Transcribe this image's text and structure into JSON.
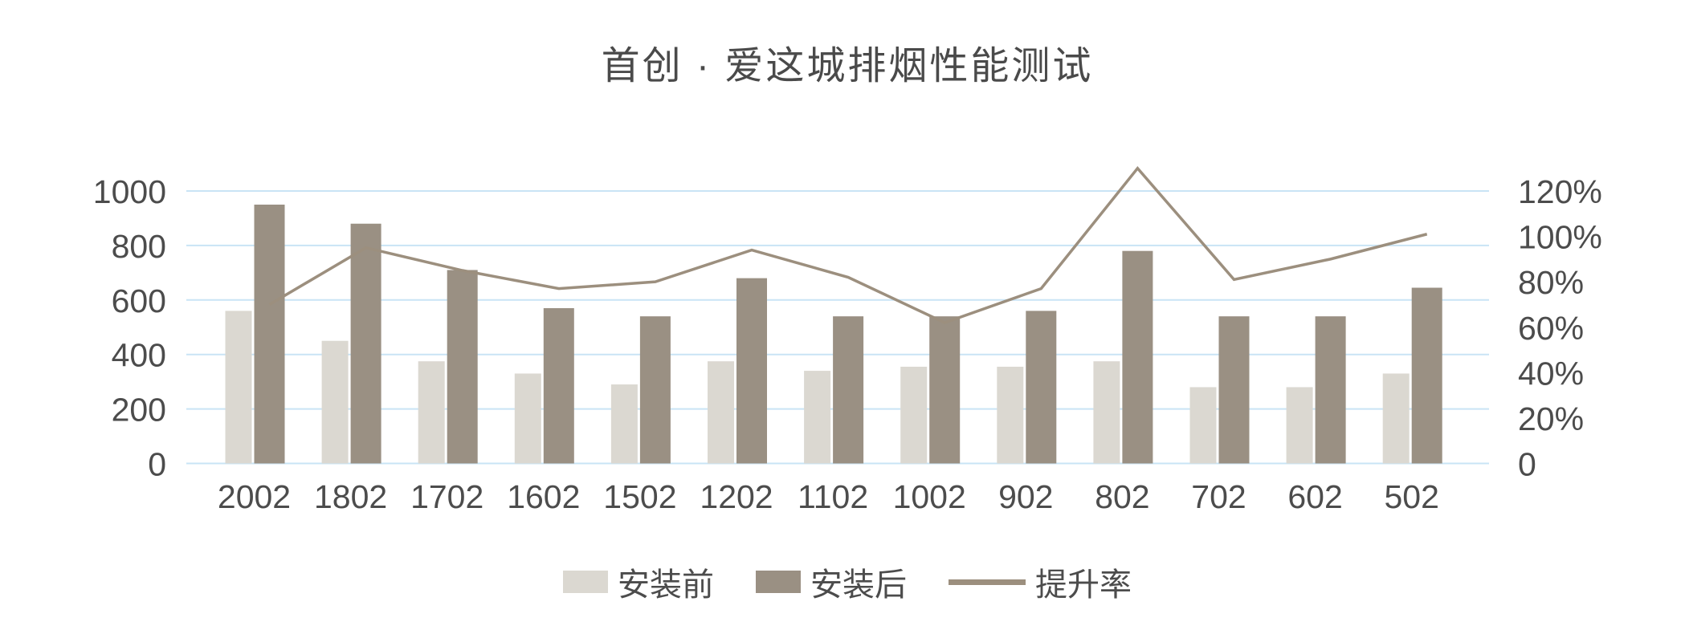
{
  "title": "首创 · 爱这城排烟性能测试",
  "colors": {
    "background": "#FFFFFF",
    "bar_before": "#DBD8D1",
    "bar_after": "#9A9083",
    "rate_line": "#9C8F7E",
    "gridline": "#C9E4F5",
    "axis_text": "#4C4C4C",
    "title_text": "#4A4A4A"
  },
  "chart_data": {
    "type": "bar",
    "subtype": "grouped-bars-with-line",
    "title": "首创 · 爱这城排烟性能测试",
    "categories": [
      "2002",
      "1802",
      "1702",
      "1602",
      "1502",
      "1202",
      "1102",
      "1002",
      "902",
      "802",
      "702",
      "602",
      "502"
    ],
    "series": [
      {
        "name": "安装前",
        "type": "bar",
        "axis": "left",
        "color": "#DBD8D1",
        "values": [
          560,
          450,
          375,
          330,
          290,
          375,
          340,
          355,
          355,
          375,
          280,
          280,
          330
        ]
      },
      {
        "name": "安装后",
        "type": "bar",
        "axis": "left",
        "color": "#9A9083",
        "values": [
          950,
          880,
          710,
          570,
          540,
          680,
          540,
          540,
          560,
          780,
          540,
          540,
          645
        ]
      },
      {
        "name": "提升率",
        "type": "line",
        "axis": "right",
        "unit": "%",
        "color": "#9C8F7E",
        "values": [
          70,
          95,
          85,
          77,
          80,
          94,
          82,
          62,
          77,
          130,
          81,
          90,
          101
        ]
      }
    ],
    "left_axis": {
      "min": 0,
      "max": 1000,
      "ticks": [
        0,
        200,
        400,
        600,
        800,
        1000
      ],
      "tick_labels": [
        "0",
        "200",
        "400",
        "600",
        "800",
        "1000"
      ]
    },
    "right_axis": {
      "min": 0,
      "max": 120,
      "tick_step": 20,
      "tick_labels": [
        "0",
        "20%",
        "40%",
        "60%",
        "80%",
        "100%",
        "120%"
      ]
    },
    "grid": true,
    "legend_position": "bottom",
    "xlabel": "",
    "ylabel": ""
  }
}
